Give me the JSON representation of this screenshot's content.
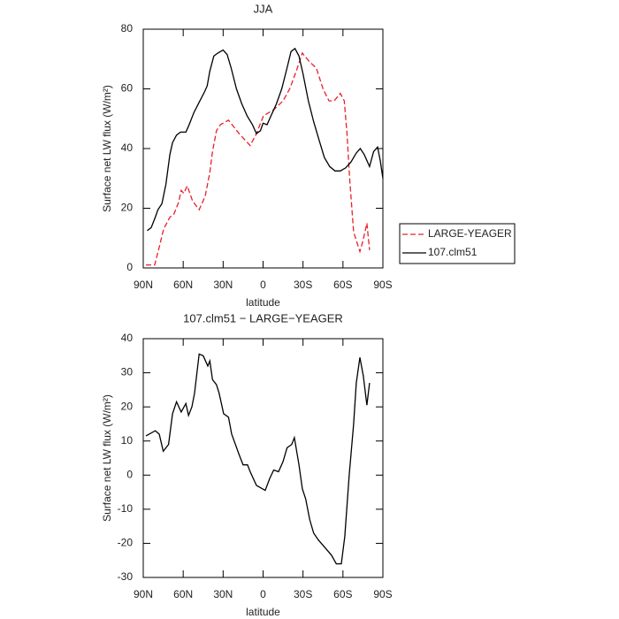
{
  "chart_data": [
    {
      "type": "line",
      "title": "JJA",
      "xlabel": "latitude",
      "ylabel": "Surface net LW flux (W/m²)",
      "xlim": [
        90,
        -90
      ],
      "ylim": [
        0,
        80
      ],
      "xticks": [
        {
          "value": 90,
          "label": "90N"
        },
        {
          "value": 60,
          "label": "60N"
        },
        {
          "value": 30,
          "label": "30N"
        },
        0,
        {
          "value": -30,
          "label": "30S"
        },
        {
          "value": -60,
          "label": "60S"
        },
        {
          "value": -90,
          "label": "90S"
        }
      ],
      "yticks": [
        0,
        20,
        40,
        60,
        80
      ],
      "legend": "right",
      "series": [
        {
          "name": "LARGE-YEAGER",
          "color": "#e8202a",
          "dash": true,
          "x": [
            88,
            81.4,
            78,
            74.7,
            70,
            67,
            63.4,
            61.5,
            59.5,
            57,
            53,
            48,
            43.5,
            40,
            38,
            35,
            32,
            26,
            18,
            9.7,
            5,
            -0.3,
            -8,
            -15,
            -20,
            -25,
            -29.5,
            -35,
            -40,
            -45,
            -49.5,
            -53.5,
            -58,
            -61,
            -63,
            -65,
            -68,
            -72.7,
            -75,
            -78,
            -80
          ],
          "values": [
            1,
            1,
            7,
            13,
            17,
            18,
            22,
            26,
            25,
            27.5,
            22.5,
            19.5,
            24,
            32,
            39,
            46,
            48,
            49.5,
            45,
            41,
            45,
            51,
            53,
            56,
            60,
            66,
            72,
            69,
            67,
            60,
            56,
            56,
            58.5,
            56,
            45,
            30,
            12,
            5.5,
            9,
            15,
            6
          ]
        },
        {
          "name": "107.clm51",
          "color": "#000000",
          "dash": false,
          "x": [
            87,
            84,
            81,
            79,
            76,
            73,
            70,
            68,
            65,
            62,
            58,
            56,
            52,
            48,
            44,
            42,
            40,
            37,
            34,
            30,
            27,
            24,
            20,
            16,
            12,
            8,
            5,
            2,
            0,
            -3,
            -6,
            -10,
            -14,
            -18,
            -21,
            -24,
            -27,
            -30,
            -34,
            -38,
            -42,
            -46,
            -50,
            -54,
            -58,
            -62,
            -66,
            -70,
            -73,
            -76,
            -80,
            -83,
            -86,
            -88,
            -90
          ],
          "values": [
            12.5,
            13.5,
            17,
            19.5,
            21.5,
            28,
            38,
            42,
            44.5,
            45.5,
            45.5,
            47.5,
            52,
            55.5,
            59,
            61,
            66,
            71,
            72,
            73,
            71.5,
            67,
            60,
            55,
            51,
            48,
            45,
            46,
            48.5,
            48,
            51,
            55,
            60,
            67,
            72.5,
            73.5,
            71,
            65,
            56,
            49,
            43,
            37,
            34,
            32.5,
            32.5,
            33.5,
            35.5,
            38.5,
            40,
            38,
            34,
            39,
            40.5,
            36,
            30
          ]
        }
      ]
    },
    {
      "type": "line",
      "title": "107.clm51 − LARGE−YEAGER",
      "xlabel": "latitude",
      "ylabel": "Surface net LW flux (W/m²)",
      "xlim": [
        90,
        -90
      ],
      "ylim": [
        -30,
        40
      ],
      "xticks": [
        {
          "value": 90,
          "label": "90N"
        },
        {
          "value": 60,
          "label": "60N"
        },
        {
          "value": 30,
          "label": "30N"
        },
        0,
        {
          "value": -30,
          "label": "30S"
        },
        {
          "value": -60,
          "label": "60S"
        },
        {
          "value": -90,
          "label": "90S"
        }
      ],
      "yticks": [
        -30,
        -20,
        -10,
        0,
        10,
        20,
        30,
        40
      ],
      "series": [
        {
          "color": "#000000",
          "dash": false,
          "x": [
            88,
            81,
            78,
            75,
            71,
            68,
            65,
            61.5,
            58,
            56,
            53.5,
            51.5,
            48,
            45,
            41.5,
            40,
            38,
            35,
            33,
            29.6,
            26,
            23.6,
            18,
            15,
            11.7,
            9.7,
            5,
            -1.6,
            -5,
            -8,
            -11.6,
            -15,
            -18,
            -21.5,
            -23.5,
            -27,
            -29.5,
            -32,
            -35,
            -38,
            -41.5,
            -47,
            -51.4,
            -55,
            -58.8,
            -61.4,
            -64.7,
            -68,
            -70,
            -72.7,
            -75.3,
            -78,
            -80
          ],
          "values": [
            11.5,
            13,
            12,
            7,
            9,
            18,
            21.5,
            18.5,
            21,
            17.5,
            20,
            24,
            35.5,
            35,
            32,
            33.5,
            28,
            26.5,
            24,
            18,
            17,
            12,
            6,
            3,
            3,
            1,
            -3,
            -4.5,
            -1,
            1.5,
            1,
            4,
            8,
            9,
            11,
            3,
            -4,
            -7,
            -13,
            -17,
            -19,
            -21.5,
            -23.5,
            -26,
            -26,
            -18,
            0,
            15,
            27,
            34.5,
            29,
            20.5,
            27
          ]
        }
      ]
    }
  ]
}
